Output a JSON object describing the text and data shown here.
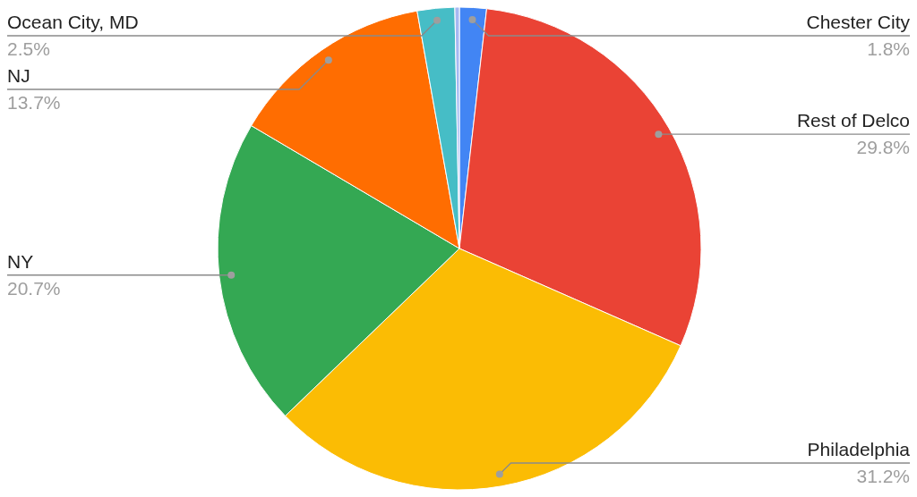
{
  "chart_data": {
    "type": "pie",
    "categories": [
      "Chester City",
      "Rest of Delco",
      "Philadelphia",
      "NY",
      "NJ",
      "Ocean City, MD",
      null
    ],
    "values": [
      1.8,
      29.8,
      31.2,
      20.7,
      13.7,
      2.5,
      0.3
    ],
    "colors": [
      "#4285f4",
      "#ea4335",
      "#fbbc04",
      "#34a853",
      "#ff6d01",
      "#46bdc6",
      "#a6b8f2"
    ],
    "value_labels": [
      "1.8%",
      "29.8%",
      "31.2%",
      "20.7%",
      "13.7%",
      "2.5%",
      null
    ]
  }
}
